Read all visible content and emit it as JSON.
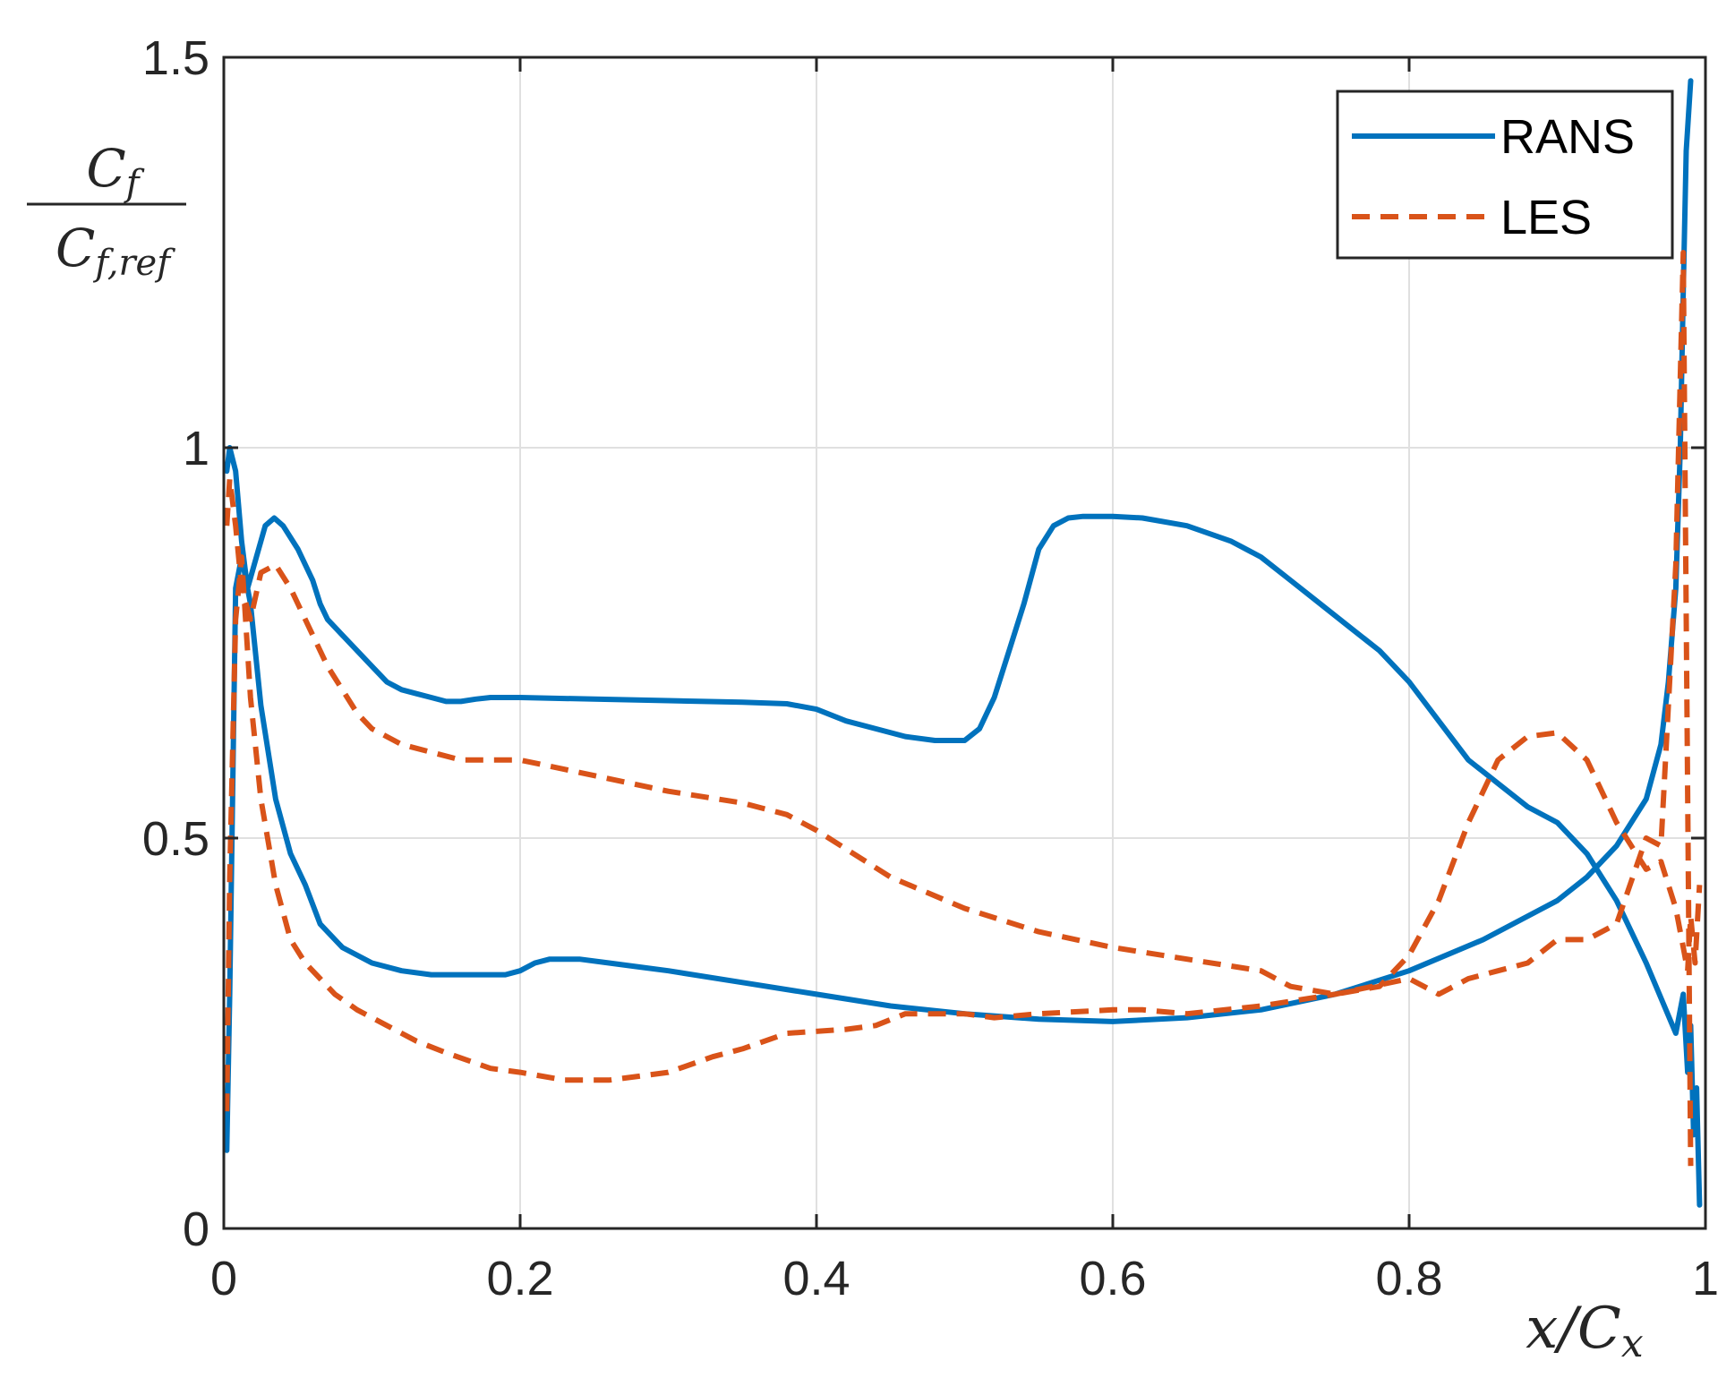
{
  "chart_data": {
    "type": "line",
    "title": "",
    "xlabel": "x/C_x",
    "ylabel": {
      "numerator": "C_f",
      "denominator": "C_f,ref"
    },
    "xlim": [
      0,
      1
    ],
    "ylim": [
      0,
      1.5
    ],
    "xticks": [
      0,
      0.2,
      0.4,
      0.6,
      0.8,
      1
    ],
    "xtick_labels": [
      "0",
      "0.2",
      "0.4",
      "0.6",
      "0.8",
      "1"
    ],
    "yticks": [
      0,
      0.5,
      1,
      1.5
    ],
    "ytick_labels": [
      "0",
      "0.5",
      "1",
      "1.5"
    ],
    "grid": true,
    "legend_position": "top-right",
    "series": [
      {
        "name": "RANS",
        "color": "#0072BD",
        "style": "solid",
        "branches": [
          {
            "x": [
              0.002,
              0.004,
              0.008,
              0.012,
              0.016,
              0.022,
              0.028,
              0.034,
              0.04,
              0.05,
              0.06,
              0.065,
              0.07,
              0.08,
              0.09,
              0.1,
              0.11,
              0.12,
              0.13,
              0.14,
              0.15,
              0.16,
              0.17,
              0.18,
              0.19,
              0.2,
              0.25,
              0.3,
              0.35,
              0.38,
              0.4,
              0.42,
              0.44,
              0.46,
              0.48,
              0.5,
              0.51,
              0.52,
              0.53,
              0.54,
              0.55,
              0.56,
              0.57,
              0.58,
              0.6,
              0.62,
              0.65,
              0.68,
              0.7,
              0.72,
              0.74,
              0.76,
              0.78,
              0.8,
              0.82,
              0.84,
              0.86,
              0.88,
              0.9,
              0.92,
              0.94,
              0.96,
              0.98,
              0.985,
              0.988,
              0.99,
              0.992,
              0.994,
              0.996
            ],
            "y": [
              0.97,
              1.0,
              0.97,
              0.88,
              0.82,
              0.86,
              0.9,
              0.91,
              0.9,
              0.87,
              0.83,
              0.8,
              0.78,
              0.76,
              0.74,
              0.72,
              0.7,
              0.69,
              0.685,
              0.68,
              0.675,
              0.675,
              0.678,
              0.68,
              0.68,
              0.68,
              0.678,
              0.676,
              0.674,
              0.672,
              0.665,
              0.65,
              0.64,
              0.63,
              0.625,
              0.625,
              0.64,
              0.68,
              0.74,
              0.8,
              0.87,
              0.9,
              0.91,
              0.912,
              0.912,
              0.91,
              0.9,
              0.88,
              0.86,
              0.83,
              0.8,
              0.77,
              0.74,
              0.7,
              0.65,
              0.6,
              0.57,
              0.54,
              0.52,
              0.48,
              0.42,
              0.34,
              0.25,
              0.3,
              0.2,
              0.26,
              0.12,
              0.18,
              0.03
            ]
          },
          {
            "x": [
              0.002,
              0.004,
              0.008,
              0.012,
              0.018,
              0.025,
              0.035,
              0.045,
              0.055,
              0.065,
              0.08,
              0.1,
              0.12,
              0.14,
              0.16,
              0.18,
              0.19,
              0.2,
              0.21,
              0.22,
              0.24,
              0.26,
              0.28,
              0.3,
              0.35,
              0.4,
              0.45,
              0.5,
              0.55,
              0.6,
              0.65,
              0.7,
              0.75,
              0.8,
              0.85,
              0.9,
              0.92,
              0.94,
              0.96,
              0.97,
              0.975,
              0.98,
              0.983,
              0.985,
              0.987,
              0.99
            ],
            "y": [
              0.1,
              0.3,
              0.82,
              0.86,
              0.8,
              0.67,
              0.55,
              0.48,
              0.44,
              0.39,
              0.36,
              0.34,
              0.33,
              0.325,
              0.325,
              0.325,
              0.325,
              0.33,
              0.34,
              0.345,
              0.345,
              0.34,
              0.335,
              0.33,
              0.315,
              0.3,
              0.285,
              0.275,
              0.268,
              0.265,
              0.27,
              0.28,
              0.3,
              0.33,
              0.37,
              0.42,
              0.45,
              0.49,
              0.55,
              0.62,
              0.7,
              0.82,
              1.0,
              1.2,
              1.38,
              1.47
            ]
          }
        ]
      },
      {
        "name": "LES",
        "color": "#D95319",
        "style": "dashed",
        "branches": [
          {
            "x": [
              0.002,
              0.004,
              0.008,
              0.012,
              0.018,
              0.025,
              0.035,
              0.045,
              0.06,
              0.07,
              0.08,
              0.09,
              0.1,
              0.12,
              0.14,
              0.16,
              0.18,
              0.2,
              0.25,
              0.3,
              0.35,
              0.38,
              0.4,
              0.45,
              0.5,
              0.55,
              0.6,
              0.65,
              0.7,
              0.72,
              0.75,
              0.78,
              0.8,
              0.82,
              0.84,
              0.86,
              0.88,
              0.9,
              0.92,
              0.94,
              0.96,
              0.97,
              0.98,
              0.985,
              0.988,
              0.99,
              0.993,
              0.996
            ],
            "y": [
              0.9,
              0.96,
              0.9,
              0.82,
              0.78,
              0.84,
              0.85,
              0.82,
              0.76,
              0.72,
              0.69,
              0.66,
              0.64,
              0.62,
              0.61,
              0.6,
              0.6,
              0.6,
              0.58,
              0.56,
              0.545,
              0.53,
              0.51,
              0.45,
              0.41,
              0.38,
              0.36,
              0.345,
              0.33,
              0.31,
              0.3,
              0.31,
              0.35,
              0.42,
              0.52,
              0.6,
              0.63,
              0.635,
              0.6,
              0.52,
              0.46,
              0.47,
              0.41,
              0.36,
              0.33,
              0.4,
              0.34,
              0.44
            ]
          },
          {
            "x": [
              0.002,
              0.004,
              0.008,
              0.012,
              0.018,
              0.025,
              0.035,
              0.045,
              0.055,
              0.065,
              0.075,
              0.09,
              0.11,
              0.13,
              0.15,
              0.18,
              0.2,
              0.23,
              0.26,
              0.28,
              0.3,
              0.33,
              0.35,
              0.38,
              0.42,
              0.44,
              0.46,
              0.5,
              0.52,
              0.55,
              0.6,
              0.62,
              0.65,
              0.7,
              0.75,
              0.8,
              0.82,
              0.84,
              0.86,
              0.88,
              0.9,
              0.92,
              0.94,
              0.96,
              0.97,
              0.98,
              0.985,
              0.99
            ],
            "y": [
              0.15,
              0.45,
              0.78,
              0.86,
              0.68,
              0.55,
              0.44,
              0.37,
              0.34,
              0.32,
              0.3,
              0.28,
              0.26,
              0.24,
              0.225,
              0.205,
              0.2,
              0.19,
              0.19,
              0.195,
              0.2,
              0.22,
              0.23,
              0.25,
              0.255,
              0.26,
              0.275,
              0.275,
              0.27,
              0.275,
              0.28,
              0.28,
              0.275,
              0.285,
              0.3,
              0.32,
              0.3,
              0.32,
              0.33,
              0.34,
              0.37,
              0.37,
              0.39,
              0.5,
              0.49,
              0.85,
              1.25,
              0.08
            ]
          }
        ]
      }
    ]
  }
}
